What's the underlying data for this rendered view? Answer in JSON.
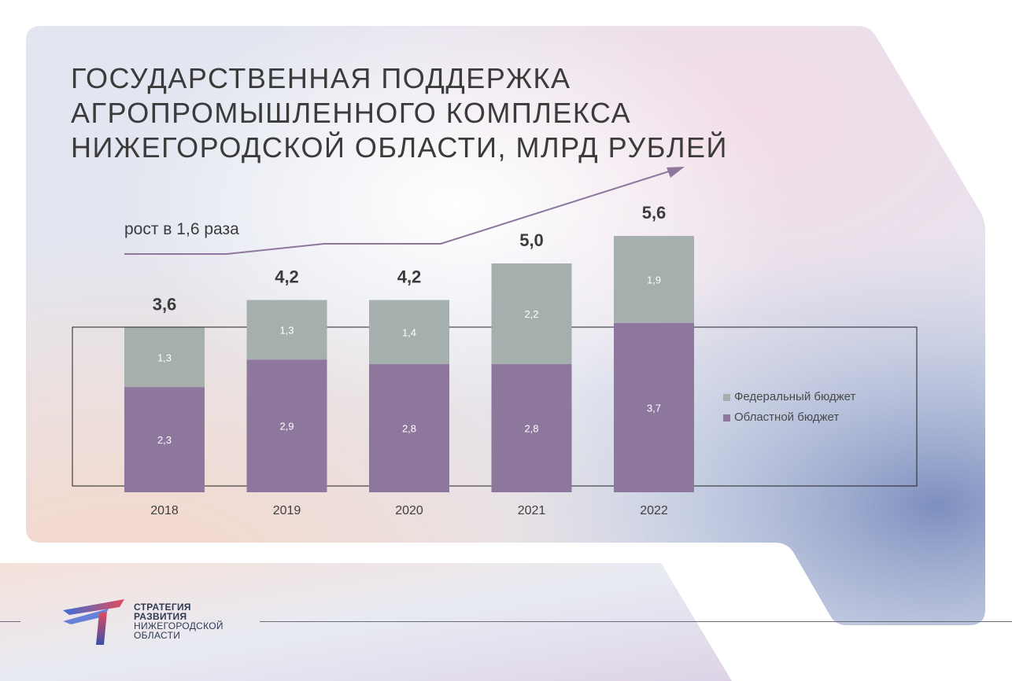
{
  "title": {
    "line1": "ГОСУДАРСТВЕННАЯ ПОДДЕРЖКА",
    "line2": "АГРОПРОМЫШЛЕННОГО КОМПЛЕКСА",
    "line3": "НИЖЕГОРОДСКОЙ ОБЛАСТИ, МЛРД РУБЛЕЙ"
  },
  "growth_note": "рост в 1,6 раза",
  "colors": {
    "regional": "#8e779d",
    "federal": "#a5afad",
    "text": "#3b3b3b",
    "arrow": "#8e779d"
  },
  "chart_data": {
    "type": "bar",
    "stacked": true,
    "categories": [
      "2018",
      "2019",
      "2020",
      "2021",
      "2022"
    ],
    "series": [
      {
        "name": "Областной бюджет",
        "values": [
          2.3,
          2.9,
          2.8,
          2.8,
          3.7
        ],
        "labels": [
          "2,3",
          "2,9",
          "2,8",
          "2,8",
          "3,7"
        ]
      },
      {
        "name": "Федеральный бюджет",
        "values": [
          1.3,
          1.3,
          1.4,
          2.2,
          1.9
        ],
        "labels": [
          "1,3",
          "1,3",
          "1,4",
          "2,2",
          "1,9"
        ]
      }
    ],
    "totals": [
      3.6,
      4.2,
      4.2,
      5.0,
      5.6
    ],
    "total_labels": [
      "3,6",
      "4,2",
      "4,2",
      "5,0",
      "5,6"
    ],
    "legend": [
      "Федеральный бюджет",
      "Областной бюджет"
    ],
    "legend_position": "right",
    "grid": false
  },
  "logo": {
    "line1": "СТРАТЕГИЯ",
    "line2": "РАЗВИТИЯ",
    "line3": "НИЖЕГОРОДСКОЙ",
    "line4": "ОБЛАСТИ"
  }
}
